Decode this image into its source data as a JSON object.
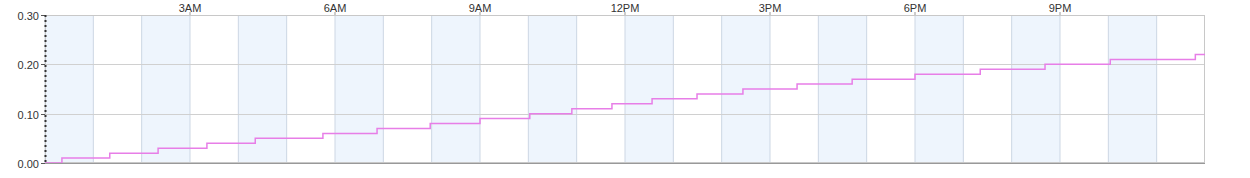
{
  "chart_data": {
    "type": "line",
    "series": [
      {
        "color": "#e77ee7",
        "line_style": "step",
        "x": [
          0,
          0.35,
          1.34,
          2.34,
          3.35,
          4.35,
          5.75,
          6.87,
          7.97,
          9.0,
          10.03,
          10.9,
          11.73,
          12.56,
          13.49,
          14.44,
          15.56,
          16.7,
          18.0,
          19.35,
          20.69,
          22.04,
          23.8,
          24
        ],
        "values": [
          0,
          0.01,
          0.02,
          0.03,
          0.04,
          0.05,
          0.06,
          0.07,
          0.08,
          0.09,
          0.1,
          0.11,
          0.12,
          0.13,
          0.14,
          0.15,
          0.16,
          0.17,
          0.18,
          0.19,
          0.2,
          0.21,
          0.22,
          0.22
        ]
      }
    ],
    "xlim": [
      0,
      24
    ],
    "xticks": [
      {
        "value": 3,
        "label": "3AM"
      },
      {
        "value": 6,
        "label": "6AM"
      },
      {
        "value": 9,
        "label": "9AM"
      },
      {
        "value": 12,
        "label": "12PM"
      },
      {
        "value": 15,
        "label": "3PM"
      },
      {
        "value": 18,
        "label": "6PM"
      },
      {
        "value": 21,
        "label": "9PM"
      }
    ],
    "ylim": [
      0,
      0.3
    ],
    "yticks": [
      {
        "value": 0,
        "label": "0.00"
      },
      {
        "value": 0.1,
        "label": "0.10"
      },
      {
        "value": 0.2,
        "label": "0.20"
      },
      {
        "value": 0.3,
        "label": "0.30"
      }
    ],
    "grid": true
  }
}
